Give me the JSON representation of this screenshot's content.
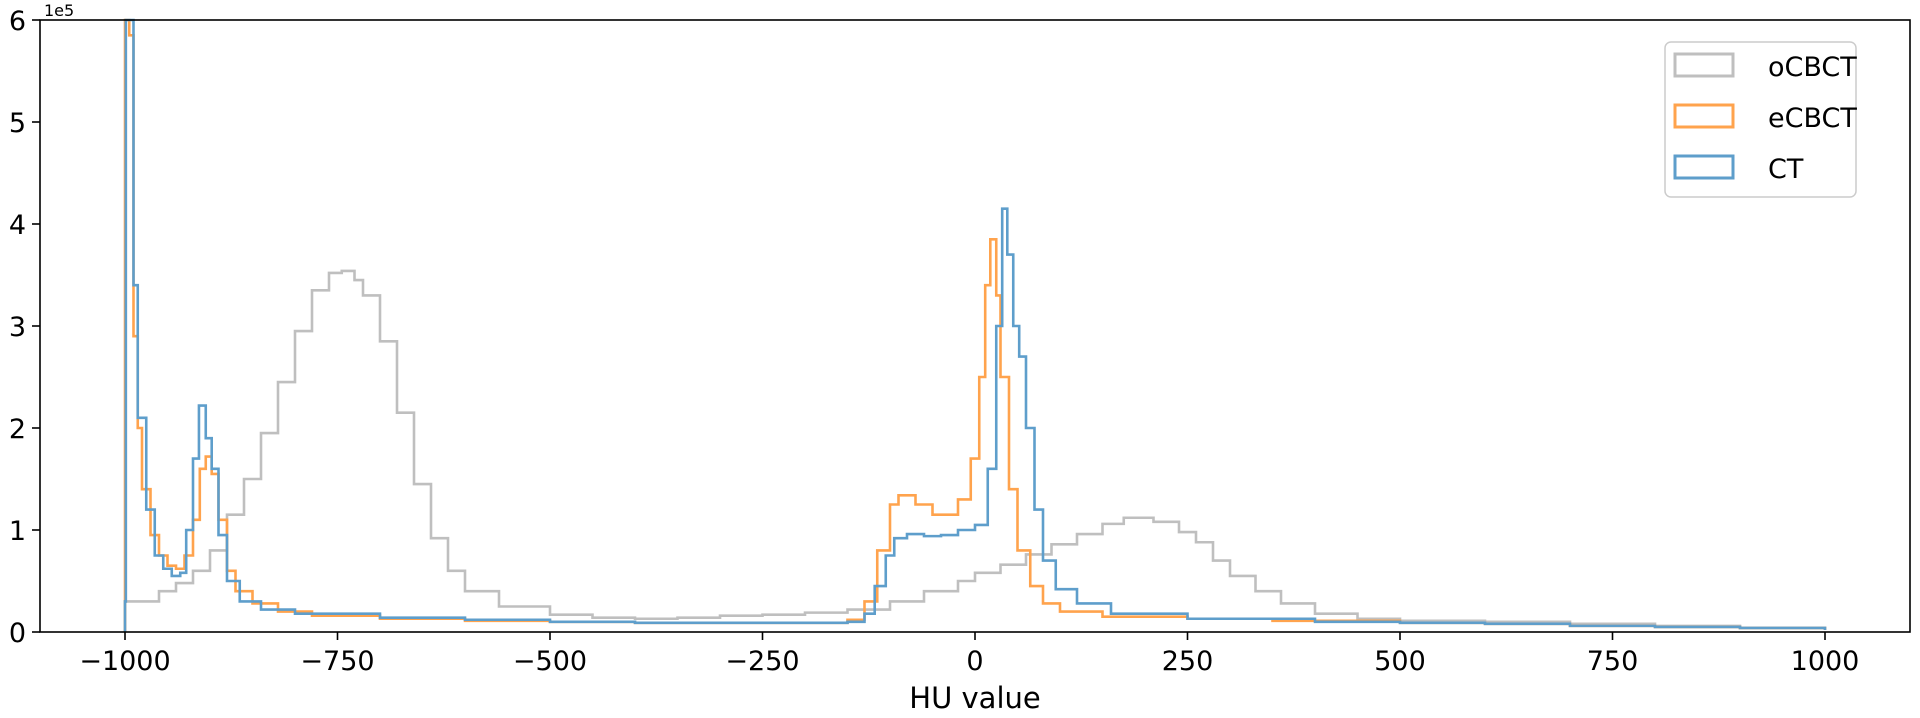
{
  "chart_data": {
    "type": "line",
    "title": "",
    "xlabel": "HU value",
    "ylabel": "",
    "y_offset_text": "1e5",
    "xlim": [
      -1100,
      1100
    ],
    "ylim": [
      0,
      6
    ],
    "x_ticks": [
      -1000,
      -750,
      -500,
      -250,
      0,
      250,
      500,
      750,
      1000
    ],
    "x_tick_labels": [
      "−1000",
      "−750",
      "−500",
      "−250",
      "0",
      "250",
      "500",
      "750",
      "1000"
    ],
    "y_ticks": [
      0,
      1,
      2,
      3,
      4,
      5,
      6
    ],
    "y_tick_labels": [
      "0",
      "1",
      "2",
      "3",
      "4",
      "5",
      "6"
    ],
    "grid": false,
    "legend_position": "top-right",
    "series": [
      {
        "name": "oCBCT",
        "color": "#bfbfbf",
        "points": [
          [
            -1000,
            0.3
          ],
          [
            -960,
            0.4
          ],
          [
            -940,
            0.48
          ],
          [
            -920,
            0.6
          ],
          [
            -900,
            0.8
          ],
          [
            -880,
            1.15
          ],
          [
            -860,
            1.5
          ],
          [
            -840,
            1.95
          ],
          [
            -820,
            2.45
          ],
          [
            -800,
            2.95
          ],
          [
            -780,
            3.35
          ],
          [
            -760,
            3.52
          ],
          [
            -745,
            3.54
          ],
          [
            -730,
            3.45
          ],
          [
            -720,
            3.3
          ],
          [
            -700,
            2.85
          ],
          [
            -680,
            2.15
          ],
          [
            -660,
            1.45
          ],
          [
            -640,
            0.92
          ],
          [
            -620,
            0.6
          ],
          [
            -600,
            0.4
          ],
          [
            -560,
            0.25
          ],
          [
            -500,
            0.17
          ],
          [
            -450,
            0.14
          ],
          [
            -400,
            0.13
          ],
          [
            -350,
            0.14
          ],
          [
            -300,
            0.16
          ],
          [
            -250,
            0.17
          ],
          [
            -200,
            0.19
          ],
          [
            -150,
            0.22
          ],
          [
            -100,
            0.3
          ],
          [
            -60,
            0.4
          ],
          [
            -20,
            0.5
          ],
          [
            0,
            0.58
          ],
          [
            30,
            0.66
          ],
          [
            60,
            0.76
          ],
          [
            90,
            0.86
          ],
          [
            120,
            0.96
          ],
          [
            150,
            1.06
          ],
          [
            175,
            1.12
          ],
          [
            190,
            1.12
          ],
          [
            210,
            1.08
          ],
          [
            240,
            0.98
          ],
          [
            260,
            0.88
          ],
          [
            280,
            0.7
          ],
          [
            300,
            0.55
          ],
          [
            330,
            0.4
          ],
          [
            360,
            0.28
          ],
          [
            400,
            0.18
          ],
          [
            450,
            0.13
          ],
          [
            500,
            0.11
          ],
          [
            600,
            0.1
          ],
          [
            700,
            0.08
          ],
          [
            800,
            0.06
          ],
          [
            900,
            0.04
          ],
          [
            1000,
            0.02
          ]
        ]
      },
      {
        "name": "eCBCT",
        "color": "#ffa34d",
        "points": [
          [
            -1000,
            6.0
          ],
          [
            -995,
            5.85
          ],
          [
            -990,
            2.9
          ],
          [
            -985,
            2.0
          ],
          [
            -980,
            1.4
          ],
          [
            -970,
            0.95
          ],
          [
            -960,
            0.75
          ],
          [
            -950,
            0.65
          ],
          [
            -940,
            0.62
          ],
          [
            -930,
            0.75
          ],
          [
            -920,
            1.1
          ],
          [
            -912,
            1.6
          ],
          [
            -905,
            1.72
          ],
          [
            -898,
            1.55
          ],
          [
            -890,
            1.1
          ],
          [
            -880,
            0.6
          ],
          [
            -870,
            0.4
          ],
          [
            -850,
            0.28
          ],
          [
            -820,
            0.2
          ],
          [
            -780,
            0.16
          ],
          [
            -700,
            0.13
          ],
          [
            -600,
            0.11
          ],
          [
            -500,
            0.1
          ],
          [
            -400,
            0.09
          ],
          [
            -300,
            0.09
          ],
          [
            -200,
            0.09
          ],
          [
            -150,
            0.12
          ],
          [
            -130,
            0.3
          ],
          [
            -115,
            0.8
          ],
          [
            -100,
            1.25
          ],
          [
            -90,
            1.34
          ],
          [
            -70,
            1.25
          ],
          [
            -50,
            1.15
          ],
          [
            -35,
            1.15
          ],
          [
            -20,
            1.3
          ],
          [
            -5,
            1.7
          ],
          [
            5,
            2.5
          ],
          [
            12,
            3.4
          ],
          [
            18,
            3.85
          ],
          [
            25,
            3.3
          ],
          [
            30,
            2.5
          ],
          [
            40,
            1.4
          ],
          [
            50,
            0.8
          ],
          [
            65,
            0.45
          ],
          [
            80,
            0.28
          ],
          [
            100,
            0.2
          ],
          [
            150,
            0.15
          ],
          [
            250,
            0.13
          ],
          [
            350,
            0.11
          ],
          [
            500,
            0.09
          ],
          [
            600,
            0.08
          ],
          [
            700,
            0.06
          ],
          [
            800,
            0.05
          ],
          [
            900,
            0.04
          ],
          [
            1000,
            0.02
          ]
        ]
      },
      {
        "name": "CT",
        "color": "#5e9ecb",
        "points": [
          [
            -1000,
            0.3
          ],
          [
            -999,
            6.0
          ],
          [
            -995,
            6.0
          ],
          [
            -990,
            3.4
          ],
          [
            -985,
            2.1
          ],
          [
            -975,
            1.2
          ],
          [
            -965,
            0.75
          ],
          [
            -955,
            0.62
          ],
          [
            -945,
            0.55
          ],
          [
            -935,
            0.58
          ],
          [
            -928,
            1.0
          ],
          [
            -920,
            1.7
          ],
          [
            -913,
            2.22
          ],
          [
            -905,
            1.9
          ],
          [
            -898,
            1.6
          ],
          [
            -890,
            0.95
          ],
          [
            -880,
            0.5
          ],
          [
            -865,
            0.3
          ],
          [
            -840,
            0.22
          ],
          [
            -800,
            0.18
          ],
          [
            -700,
            0.14
          ],
          [
            -600,
            0.12
          ],
          [
            -500,
            0.1
          ],
          [
            -400,
            0.09
          ],
          [
            -300,
            0.09
          ],
          [
            -200,
            0.09
          ],
          [
            -150,
            0.1
          ],
          [
            -130,
            0.18
          ],
          [
            -118,
            0.45
          ],
          [
            -105,
            0.75
          ],
          [
            -95,
            0.92
          ],
          [
            -80,
            0.96
          ],
          [
            -60,
            0.94
          ],
          [
            -40,
            0.95
          ],
          [
            -20,
            1.0
          ],
          [
            0,
            1.05
          ],
          [
            15,
            1.6
          ],
          [
            25,
            3.0
          ],
          [
            32,
            4.15
          ],
          [
            38,
            3.7
          ],
          [
            45,
            3.0
          ],
          [
            52,
            2.7
          ],
          [
            60,
            2.0
          ],
          [
            70,
            1.2
          ],
          [
            80,
            0.7
          ],
          [
            95,
            0.42
          ],
          [
            120,
            0.28
          ],
          [
            160,
            0.18
          ],
          [
            250,
            0.13
          ],
          [
            400,
            0.1
          ],
          [
            500,
            0.09
          ],
          [
            600,
            0.08
          ],
          [
            700,
            0.06
          ],
          [
            800,
            0.05
          ],
          [
            900,
            0.04
          ],
          [
            1000,
            0.02
          ]
        ]
      }
    ]
  }
}
